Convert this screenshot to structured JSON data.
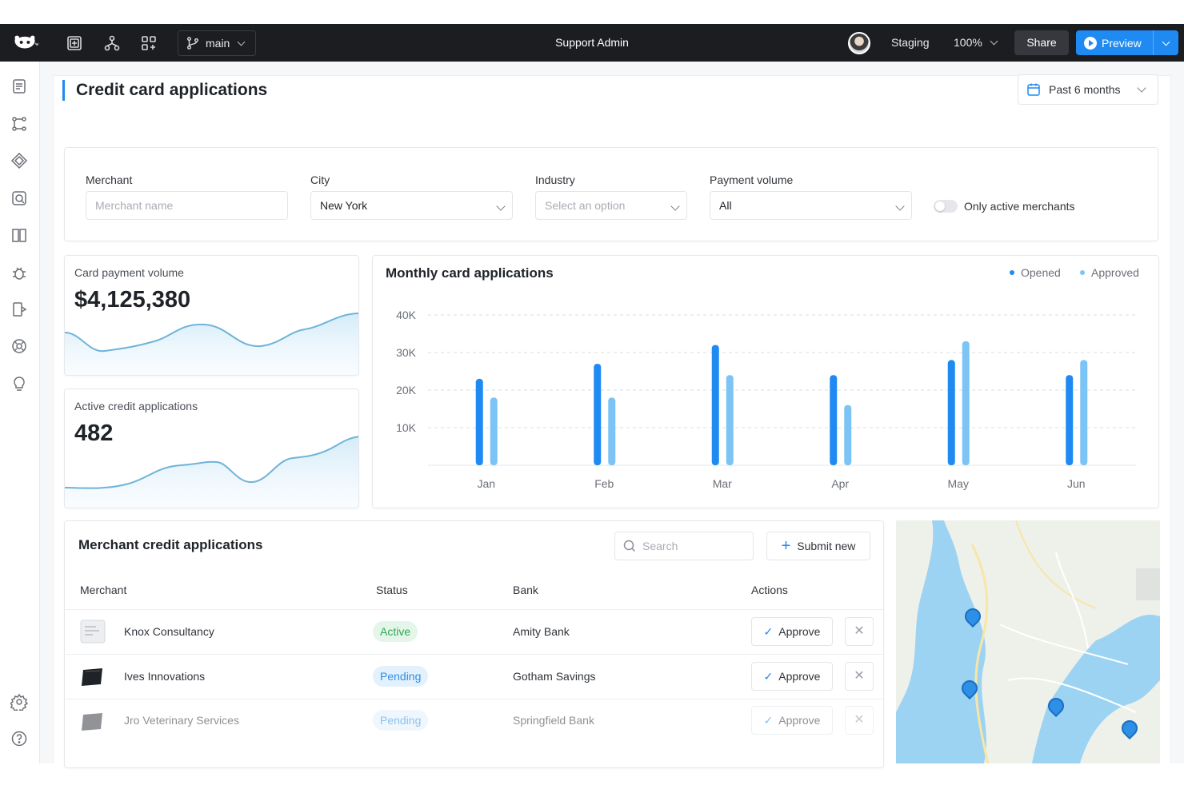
{
  "topbar": {
    "branch": "main",
    "app_title": "Support Admin",
    "environment": "Staging",
    "zoom": "100%",
    "share_label": "Share",
    "preview_label": "Preview"
  },
  "header": {
    "page_title": "Credit card applications",
    "date_range": "Past 6 months"
  },
  "filters": {
    "merchant_label": "Merchant",
    "merchant_placeholder": "Merchant name",
    "city_label": "City",
    "city_value": "New York",
    "industry_label": "Industry",
    "industry_placeholder": "Select an option",
    "volume_label": "Payment volume",
    "volume_value": "All",
    "toggle_label": "Only active merchants",
    "toggle_on": false
  },
  "kpis": {
    "volume_label": "Card payment volume",
    "volume_value": "$4,125,380",
    "apps_label": "Active credit applications",
    "apps_value": "482"
  },
  "chart_data": {
    "type": "bar",
    "title": "Monthly card applications",
    "categories": [
      "Jan",
      "Feb",
      "Mar",
      "Apr",
      "May",
      "Jun"
    ],
    "series": [
      {
        "name": "Opened",
        "values": [
          23000,
          27000,
          32000,
          24000,
          28000,
          24000
        ],
        "color": "#1f8af2"
      },
      {
        "name": "Approved",
        "values": [
          18000,
          18000,
          24000,
          16000,
          33000,
          28000
        ],
        "color": "#7cc4f5"
      }
    ],
    "ylim": [
      0,
      40000
    ],
    "yticks": [
      "10K",
      "20K",
      "30K",
      "40K"
    ],
    "grid": true,
    "legend_position": "top-right"
  },
  "table": {
    "title": "Merchant credit applications",
    "search_placeholder": "Search",
    "submit_label": "Submit new",
    "columns": [
      "Merchant",
      "Status",
      "Bank",
      "Actions"
    ],
    "approve_label": "Approve",
    "rows": [
      {
        "merchant": "Knox Consultancy",
        "status": "Active",
        "bank": "Amity Bank"
      },
      {
        "merchant": "Ives Innovations",
        "status": "Pending",
        "bank": "Gotham Savings"
      },
      {
        "merchant": "Jro Veterinary Services",
        "status": "Pending",
        "bank": "Springfield Bank"
      }
    ]
  },
  "colors": {
    "accent": "#1f8af2",
    "accent_light": "#7cc4f5",
    "active_green": "#2fa853",
    "topbar_bg": "#1c1d21"
  },
  "icons": {
    "sidebar": [
      "pages-icon",
      "workflow-icon",
      "components-icon",
      "query-icon",
      "docs-icon",
      "debug-icon",
      "code-icon",
      "plugins-icon",
      "tips-icon",
      "settings-icon",
      "help-icon"
    ]
  }
}
